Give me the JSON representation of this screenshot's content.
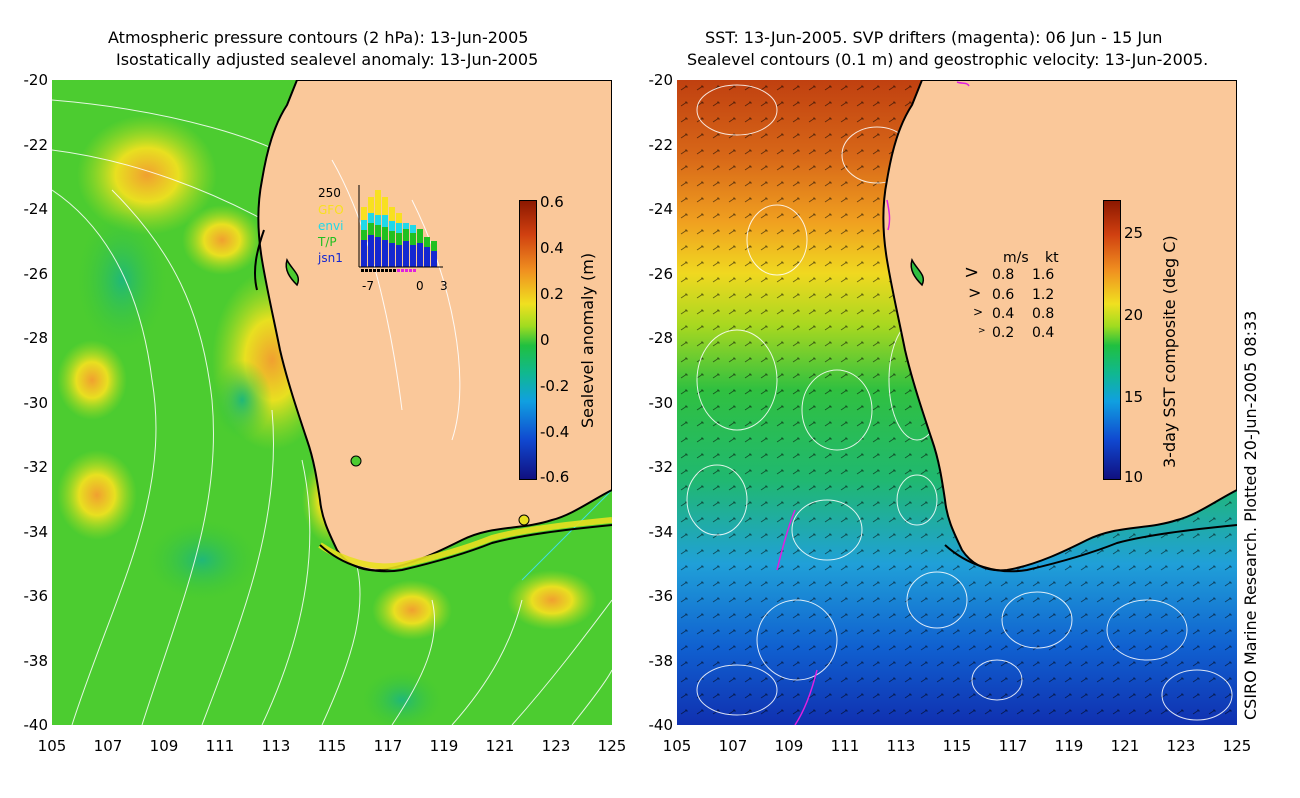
{
  "left_panel": {
    "title_line1": "Atmospheric pressure contours (2 hPa): 13-Jun-2005",
    "title_line2": "Isostatically adjusted sealevel anomaly: 13-Jun-2005",
    "colorbar_label": "Sealevel anomaly (m)",
    "colorbar_ticks": [
      "0.6",
      "0.4",
      "0.2",
      "0",
      "-0.2",
      "-0.4",
      "-0.6"
    ],
    "histogram": {
      "ymax_label": "250",
      "legend": [
        "GFO",
        "envi",
        "T/P",
        "jsn1"
      ],
      "xticks": [
        "-7",
        "0",
        "3"
      ]
    }
  },
  "right_panel": {
    "title_line1": "SST: 13-Jun-2005. SVP drifters (magenta): 06 Jun - 15 Jun",
    "title_line2": "Sealevel contours (0.1 m) and geostrophic velocity: 13-Jun-2005.",
    "colorbar_label": "3-day SST composite (deg C)",
    "colorbar_ticks": [
      "25",
      "20",
      "15",
      "10"
    ],
    "velocity_legend": {
      "header_ms": "m/s",
      "header_kt": "kt",
      "rows": [
        {
          "ms": "0.8",
          "kt": "1.6"
        },
        {
          "ms": "0.6",
          "kt": "1.2"
        },
        {
          "ms": "0.4",
          "kt": "0.8"
        },
        {
          "ms": "0.2",
          "kt": "0.4"
        }
      ]
    }
  },
  "axes": {
    "y_ticks": [
      "-20",
      "-22",
      "-24",
      "-26",
      "-28",
      "-30",
      "-32",
      "-34",
      "-36",
      "-38",
      "-40"
    ],
    "x_ticks": [
      "105",
      "107",
      "109",
      "111",
      "113",
      "115",
      "117",
      "119",
      "121",
      "123",
      "125"
    ]
  },
  "credit": "CSIRO Marine Research. Plotted 20-Jun-2005 08:33",
  "colors": {
    "land": "#fac89a",
    "ocean_green": "#3cc832",
    "drifter": "#e020e0"
  }
}
